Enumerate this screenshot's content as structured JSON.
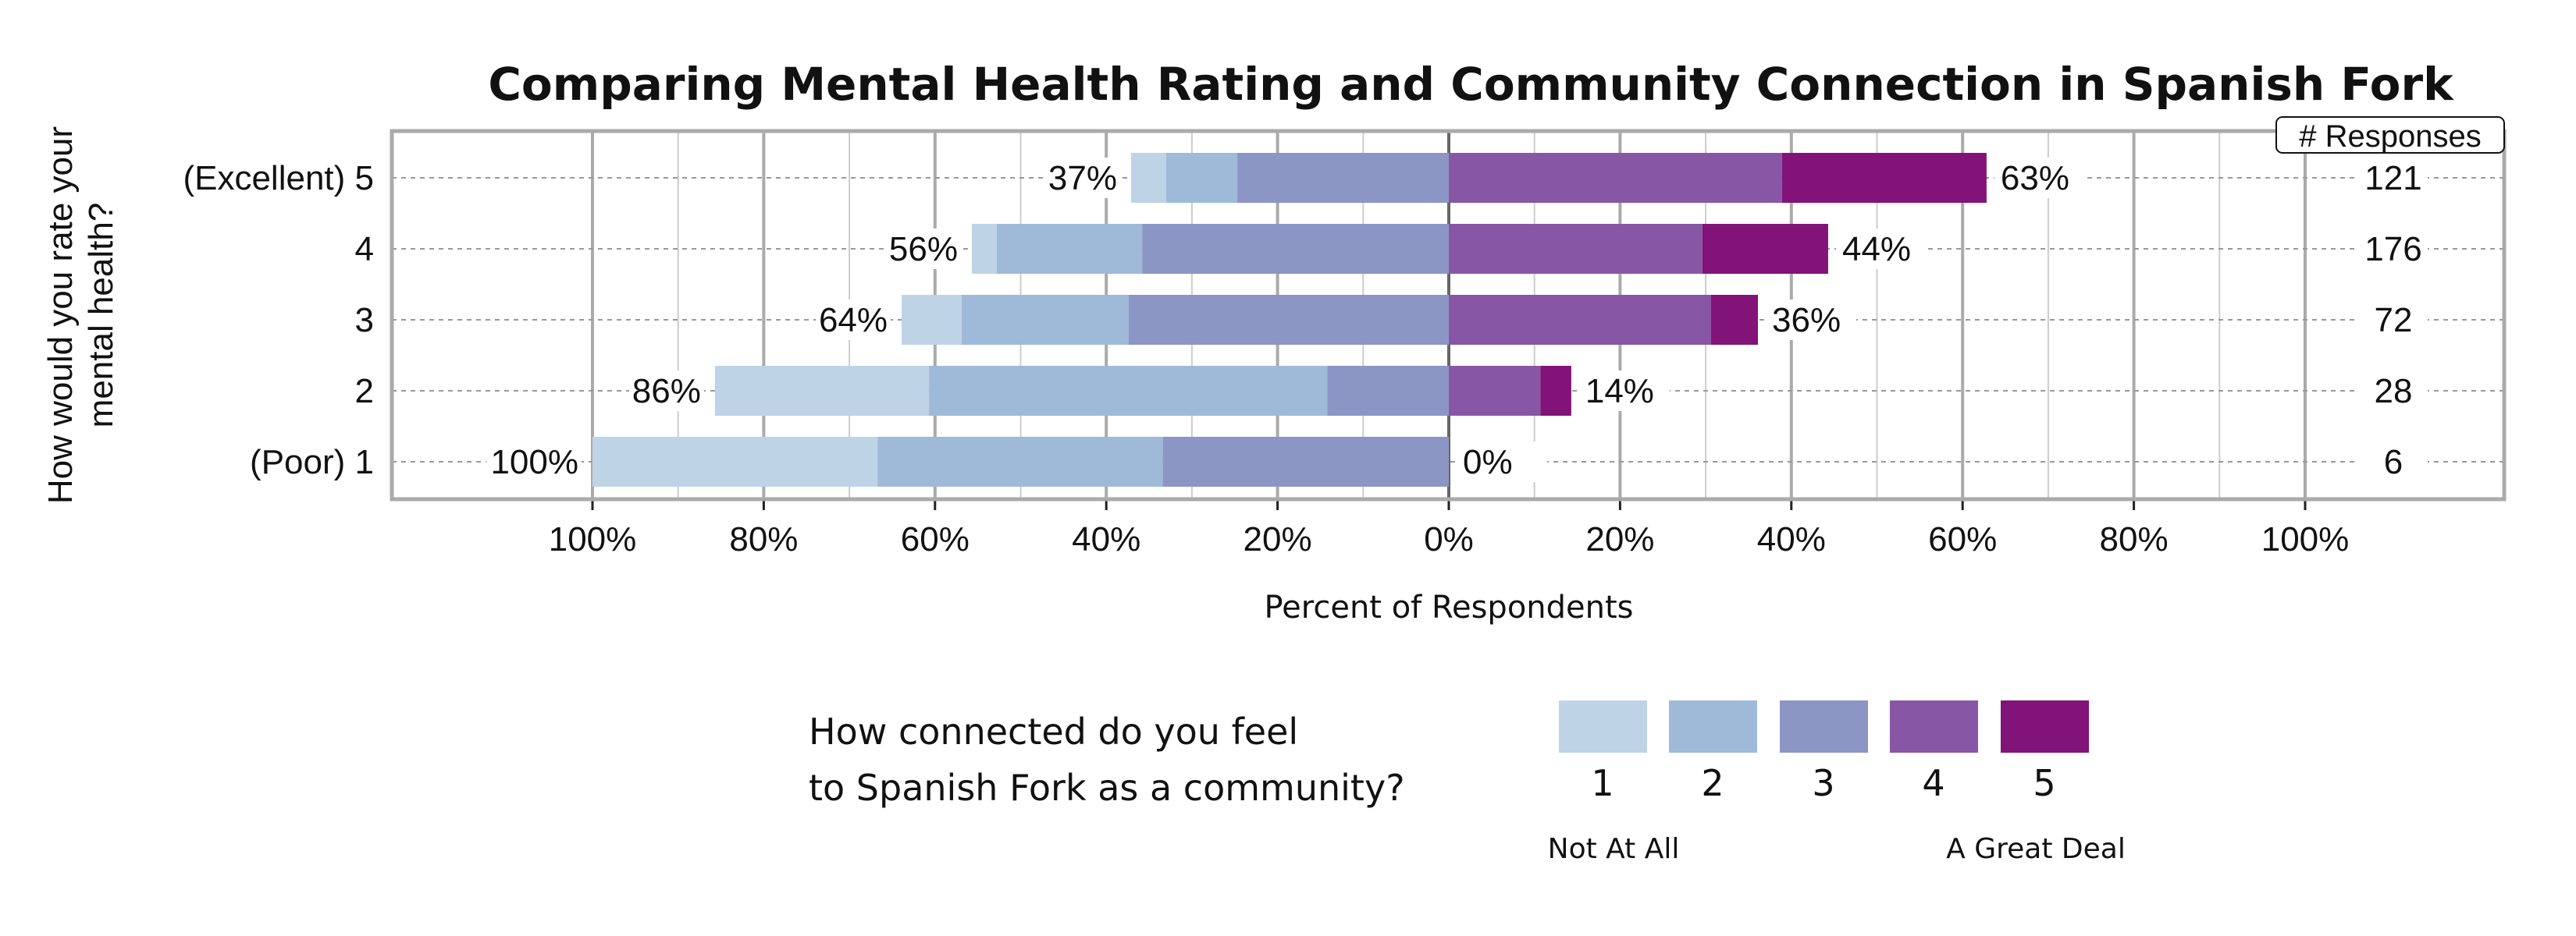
{
  "chart_data": {
    "type": "bar",
    "orientation": "horizontal-diverging-stacked",
    "title": "Comparing Mental Health Rating and Community Connection in Spanish Fork",
    "ylabel_lines": [
      "How would you rate your",
      "mental health?"
    ],
    "xlabel": "Percent of Respondents",
    "x_ticks": [
      "100%",
      "80%",
      "60%",
      "40%",
      "20%",
      "0%",
      "20%",
      "40%",
      "60%",
      "80%",
      "100%"
    ],
    "xlim": [
      -100,
      100
    ],
    "grid": true,
    "categories": [
      "(Excellent) 5",
      "4",
      "3",
      "2",
      "(Poor) 1"
    ],
    "series": [
      {
        "name": "1",
        "color": "#bed3e6",
        "values": [
          4.1,
          2.9,
          7.0,
          25.0,
          33.3
        ]
      },
      {
        "name": "2",
        "color": "#9fbad8",
        "values": [
          8.3,
          17.0,
          19.5,
          46.5,
          33.3
        ]
      },
      {
        "name": "3",
        "color": "#8b96c5",
        "values": [
          24.7,
          35.8,
          37.4,
          14.2,
          33.4
        ]
      },
      {
        "name": "4",
        "color": "#8757a6",
        "values": [
          38.9,
          29.6,
          30.6,
          10.7,
          0
        ]
      },
      {
        "name": "5",
        "color": "#821378",
        "values": [
          23.9,
          14.7,
          5.5,
          3.6,
          0
        ]
      }
    ],
    "left_labels": [
      "37%",
      "56%",
      "64%",
      "86%",
      "100%"
    ],
    "right_labels": [
      "63%",
      "44%",
      "36%",
      "14%",
      "0%"
    ],
    "responses_header": "# Responses",
    "responses": [
      "121",
      "176",
      "72",
      "28",
      "6"
    ],
    "legend": {
      "title_lines": [
        "How connected do you feel",
        "to Spanish Fork as a community?"
      ],
      "low_label": "Not At All",
      "high_label": "A Great Deal",
      "placement": "bottom"
    }
  }
}
